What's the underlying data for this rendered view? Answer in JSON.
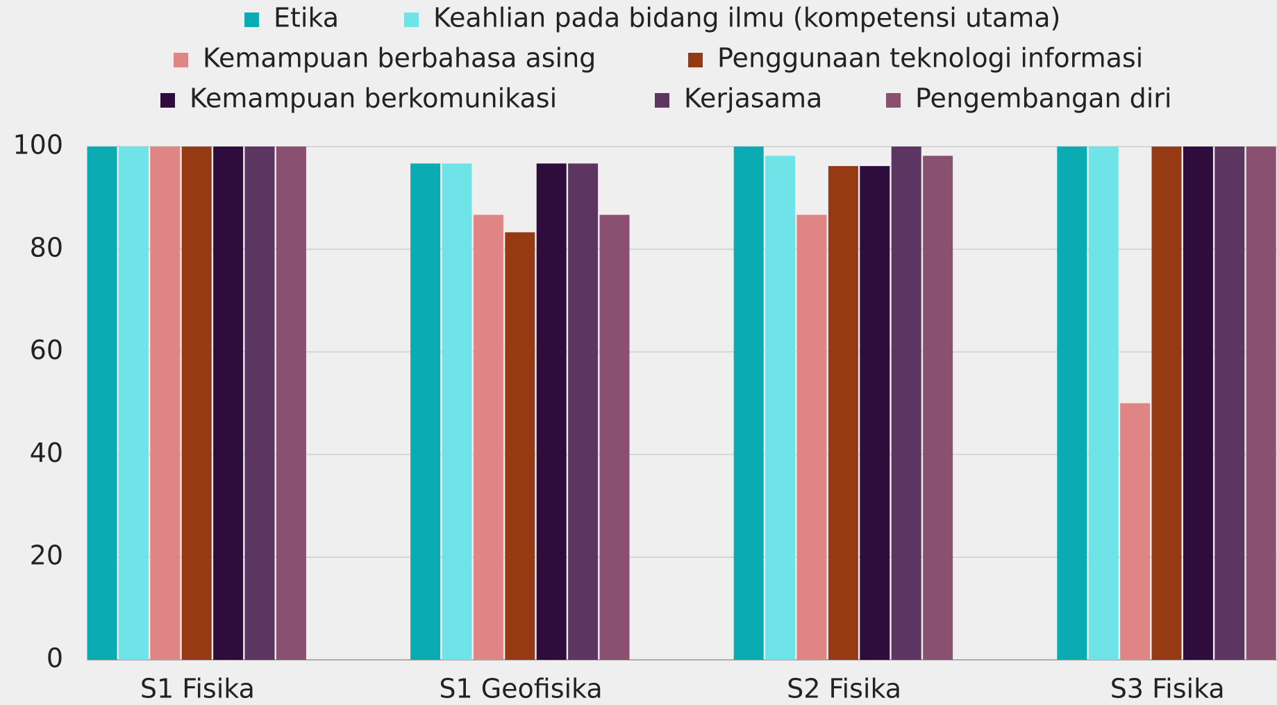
{
  "chart_data": {
    "type": "bar",
    "categories": [
      "S1 Fisika",
      "S1 Geofisika",
      "S2 Fisika",
      "S3 Fisika"
    ],
    "series": [
      {
        "name": "Etika",
        "color": "#0aabb3",
        "values": [
          100,
          96.7,
          100,
          100
        ]
      },
      {
        "name": "Keahlian pada bidang ilmu (kompetensi utama)",
        "color": "#6ee3e8",
        "values": [
          100,
          96.7,
          98.2,
          100
        ]
      },
      {
        "name": "Kemampuan berbahasa asing",
        "color": "#e08585",
        "values": [
          100,
          86.7,
          86.7,
          50
        ]
      },
      {
        "name": "Penggunaan teknologi informasi",
        "color": "#963a14",
        "values": [
          100,
          83.3,
          96.2,
          100
        ]
      },
      {
        "name": "Kemampuan berkomunikasi",
        "color": "#2e0c3c",
        "values": [
          100,
          96.7,
          96.2,
          100
        ]
      },
      {
        "name": "Kerjasama",
        "color": "#5c3560",
        "values": [
          100,
          96.7,
          100,
          100
        ]
      },
      {
        "name": "Pengembangan diri",
        "color": "#8a5070",
        "values": [
          100,
          86.7,
          98.2,
          100
        ]
      }
    ],
    "ylim": [
      0,
      100
    ],
    "yticks": [
      0,
      20,
      40,
      60,
      80,
      100
    ],
    "grid": true,
    "legend": "top"
  }
}
